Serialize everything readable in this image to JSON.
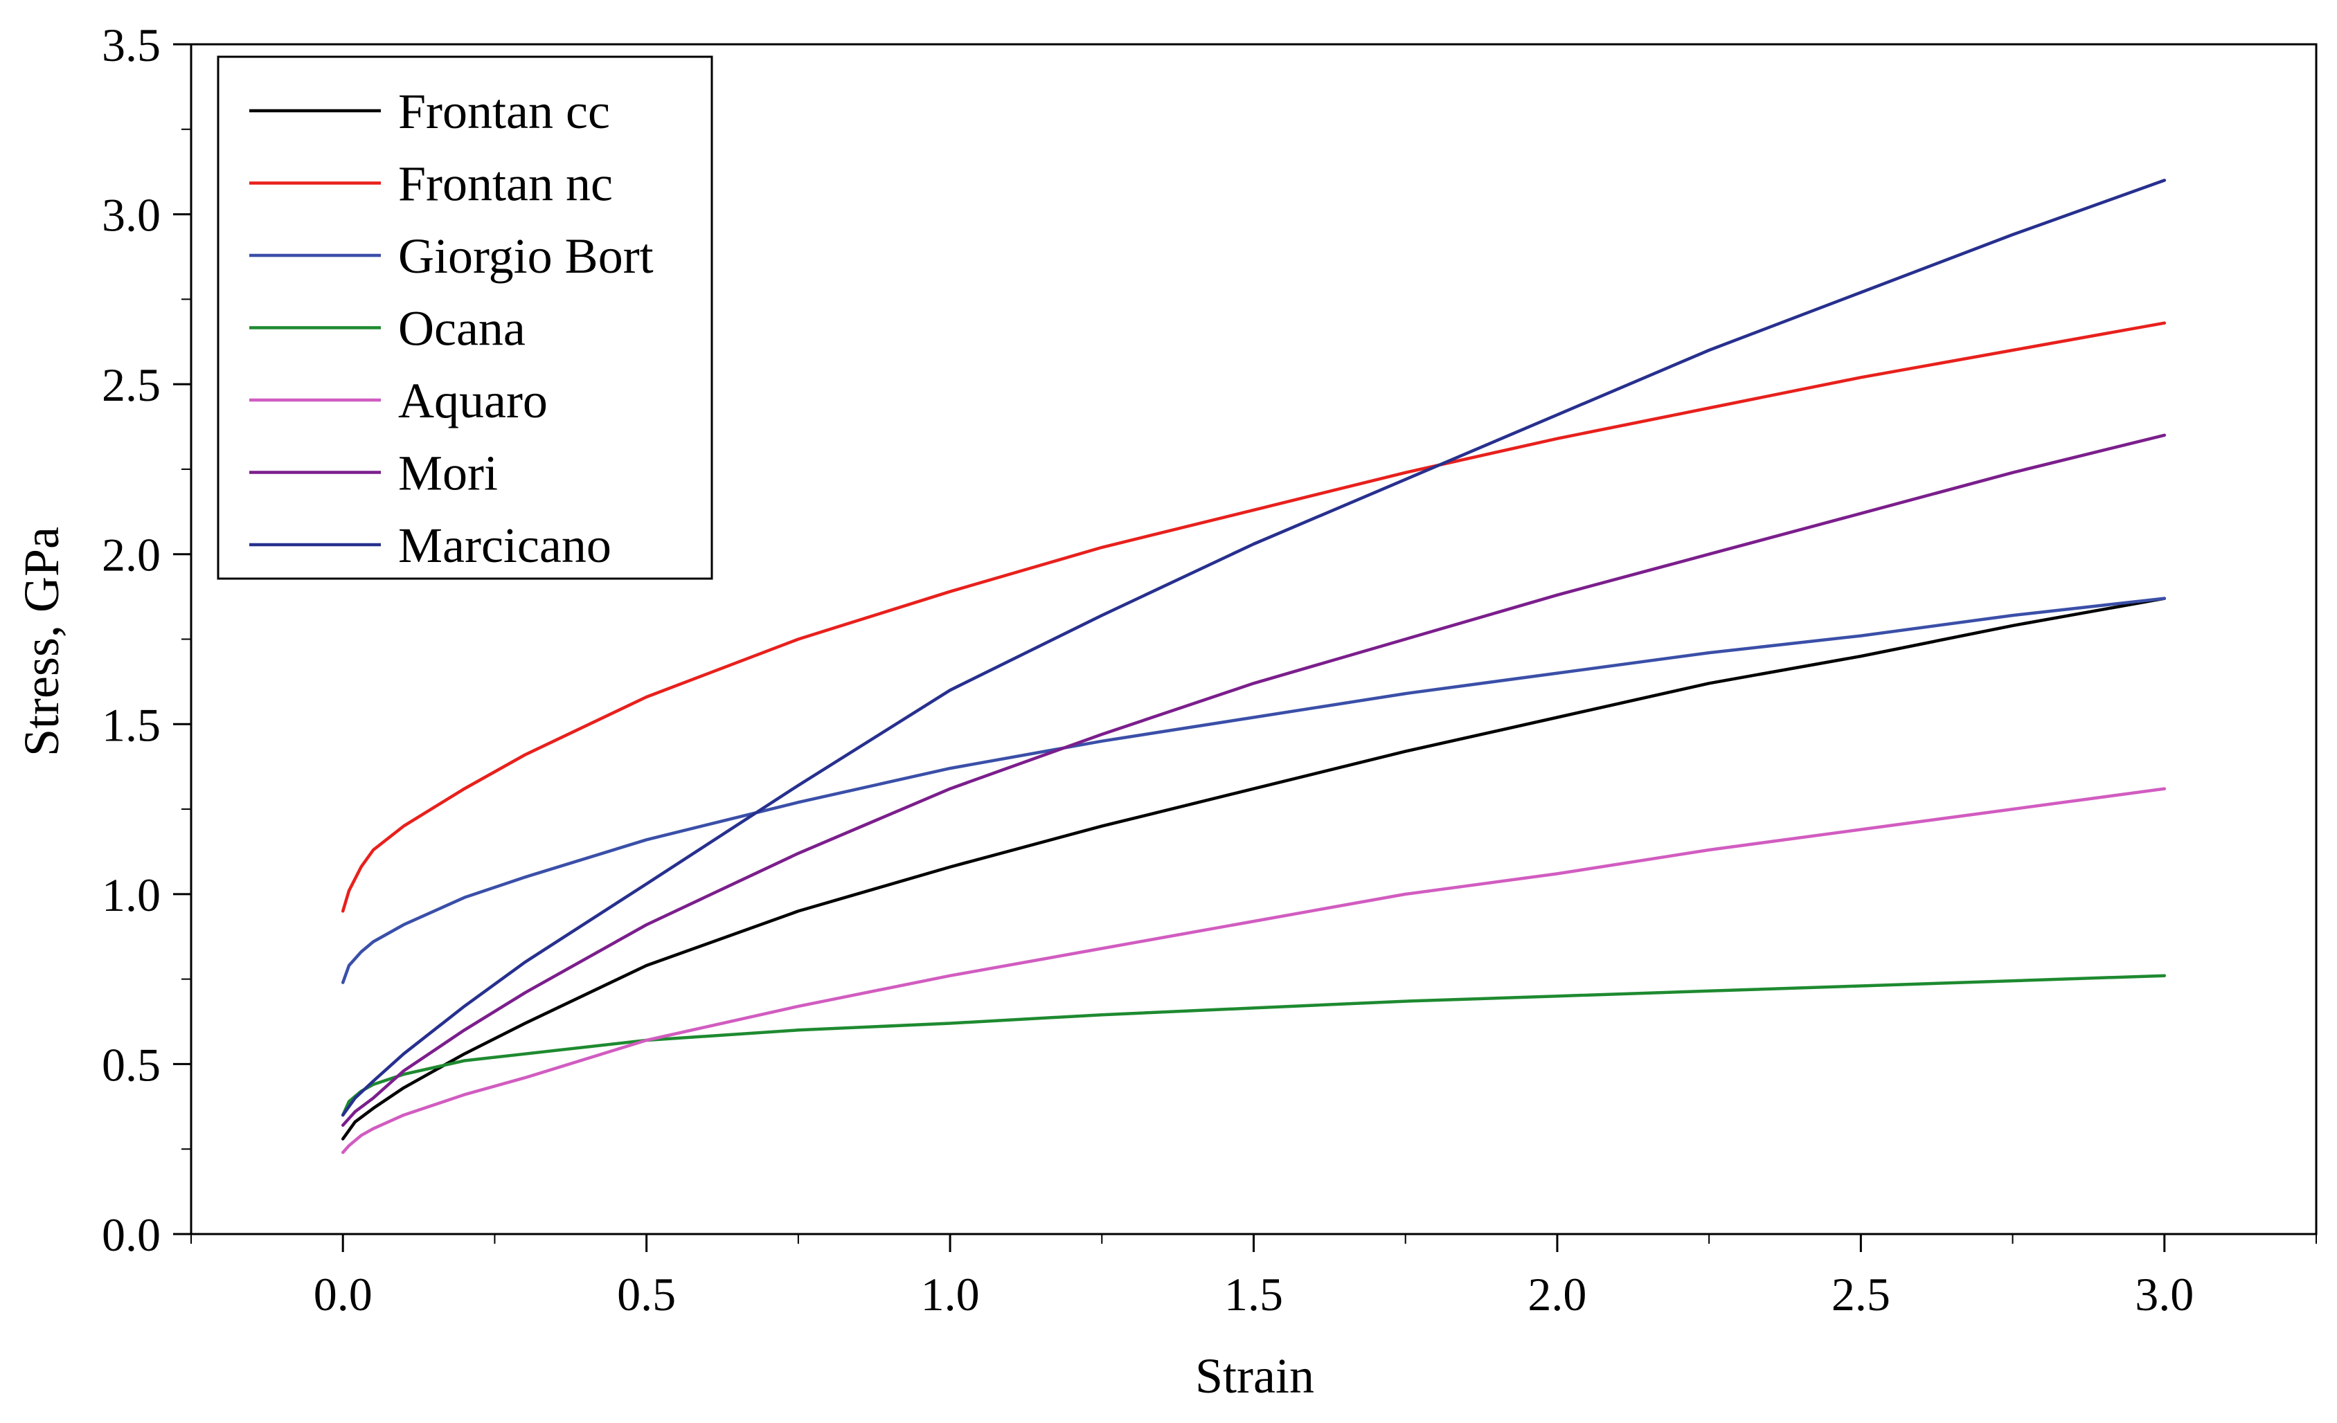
{
  "chart_data": {
    "type": "line",
    "xlabel": "Strain",
    "ylabel": "Stress, GPa",
    "xlim": [
      -0.25,
      3.25
    ],
    "ylim": [
      0.0,
      3.5
    ],
    "xticks": [
      "0.0",
      "0.5",
      "1.0",
      "1.5",
      "2.0",
      "2.5",
      "3.0"
    ],
    "yticks": [
      "0.0",
      "0.5",
      "1.0",
      "1.5",
      "2.0",
      "2.5",
      "3.0",
      "3.5"
    ],
    "grid": false,
    "legend_position": "top-left",
    "series": [
      {
        "name": "Frontan cc",
        "color": "#000000",
        "x": [
          0,
          0.02,
          0.05,
          0.1,
          0.2,
          0.3,
          0.5,
          0.75,
          1.0,
          1.25,
          1.5,
          1.75,
          2.0,
          2.25,
          2.5,
          2.75,
          3.0
        ],
        "y": [
          0.28,
          0.33,
          0.37,
          0.43,
          0.53,
          0.62,
          0.79,
          0.95,
          1.08,
          1.2,
          1.31,
          1.42,
          1.52,
          1.62,
          1.7,
          1.79,
          1.87
        ]
      },
      {
        "name": "Frontan nc",
        "color": "#e8201c",
        "x": [
          0,
          0.01,
          0.03,
          0.05,
          0.1,
          0.2,
          0.3,
          0.5,
          0.75,
          1.0,
          1.25,
          1.5,
          1.75,
          2.0,
          2.25,
          2.5,
          2.75,
          3.0
        ],
        "y": [
          0.95,
          1.01,
          1.08,
          1.13,
          1.2,
          1.31,
          1.41,
          1.58,
          1.75,
          1.89,
          2.02,
          2.13,
          2.24,
          2.34,
          2.43,
          2.52,
          2.6,
          2.68
        ]
      },
      {
        "name": "Giorgio Bort",
        "color": "#3a4fa8",
        "x": [
          0,
          0.01,
          0.03,
          0.05,
          0.1,
          0.2,
          0.3,
          0.5,
          0.75,
          1.0,
          1.25,
          1.5,
          1.75,
          2.0,
          2.25,
          2.5,
          2.75,
          3.0
        ],
        "y": [
          0.74,
          0.79,
          0.83,
          0.86,
          0.91,
          0.99,
          1.05,
          1.16,
          1.27,
          1.37,
          1.45,
          1.52,
          1.59,
          1.65,
          1.71,
          1.76,
          1.82,
          1.87
        ]
      },
      {
        "name": "Ocana",
        "color": "#1e8a30",
        "x": [
          0,
          0.01,
          0.03,
          0.05,
          0.1,
          0.2,
          0.3,
          0.5,
          0.75,
          1.0,
          1.25,
          1.5,
          1.75,
          2.0,
          2.25,
          2.5,
          2.75,
          3.0
        ],
        "y": [
          0.35,
          0.39,
          0.42,
          0.44,
          0.47,
          0.51,
          0.53,
          0.57,
          0.6,
          0.62,
          0.645,
          0.665,
          0.685,
          0.7,
          0.715,
          0.73,
          0.745,
          0.76
        ]
      },
      {
        "name": "Aquaro",
        "color": "#d15cc0",
        "x": [
          0,
          0.01,
          0.03,
          0.05,
          0.1,
          0.2,
          0.3,
          0.5,
          0.75,
          1.0,
          1.25,
          1.5,
          1.75,
          2.0,
          2.25,
          2.5,
          2.75,
          3.0
        ],
        "y": [
          0.24,
          0.26,
          0.29,
          0.31,
          0.35,
          0.41,
          0.46,
          0.57,
          0.67,
          0.76,
          0.84,
          0.92,
          1.0,
          1.06,
          1.13,
          1.19,
          1.25,
          1.31
        ]
      },
      {
        "name": "Mori",
        "color": "#7b1e8c",
        "x": [
          0,
          0.02,
          0.05,
          0.1,
          0.2,
          0.3,
          0.5,
          0.75,
          1.0,
          1.25,
          1.5,
          1.75,
          2.0,
          2.25,
          2.5,
          2.75,
          3.0
        ],
        "y": [
          0.32,
          0.36,
          0.4,
          0.48,
          0.6,
          0.71,
          0.91,
          1.12,
          1.31,
          1.47,
          1.62,
          1.75,
          1.88,
          2.0,
          2.12,
          2.24,
          2.35
        ]
      },
      {
        "name": "Marcicano",
        "color": "#27308e",
        "x": [
          0,
          0.02,
          0.05,
          0.1,
          0.2,
          0.3,
          0.5,
          0.75,
          1.0,
          1.25,
          1.5,
          1.75,
          2.0,
          2.25,
          2.5,
          2.75,
          3.0
        ],
        "y": [
          0.35,
          0.4,
          0.45,
          0.53,
          0.67,
          0.8,
          1.03,
          1.32,
          1.6,
          1.82,
          2.03,
          2.22,
          2.41,
          2.6,
          2.77,
          2.94,
          3.1
        ]
      }
    ]
  }
}
